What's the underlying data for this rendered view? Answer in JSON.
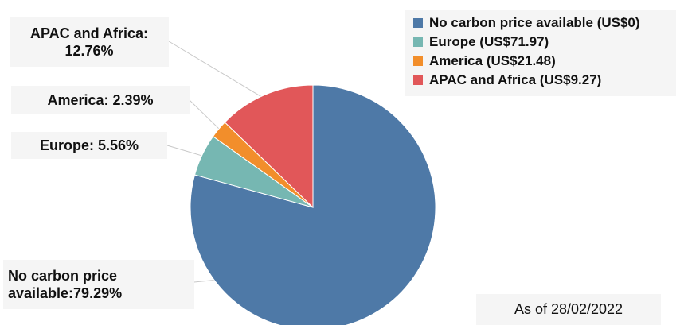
{
  "chart_data": {
    "type": "pie",
    "slices": [
      {
        "name": "No carbon price available",
        "value": 79.29,
        "color": "#4e79a7"
      },
      {
        "name": "Europe",
        "value": 5.56,
        "color": "#76b7b2"
      },
      {
        "name": "America",
        "value": 2.39,
        "color": "#f28e2b"
      },
      {
        "name": "APAC and Africa",
        "value": 12.76,
        "color": "#e15759"
      }
    ],
    "legend": {
      "placement": "top-right",
      "entries": [
        "No carbon price available (US$0)",
        "Europe (US$71.97)",
        "America (US$21.48)",
        "APAC and Africa (US$9.27)"
      ]
    },
    "data_labels": [
      "No carbon price\navailable:79.29%",
      "Europe: 5.56%",
      "America: 2.39%",
      "APAC and Africa:\n12.76%"
    ]
  },
  "footnote": "As of 28/02/2022"
}
